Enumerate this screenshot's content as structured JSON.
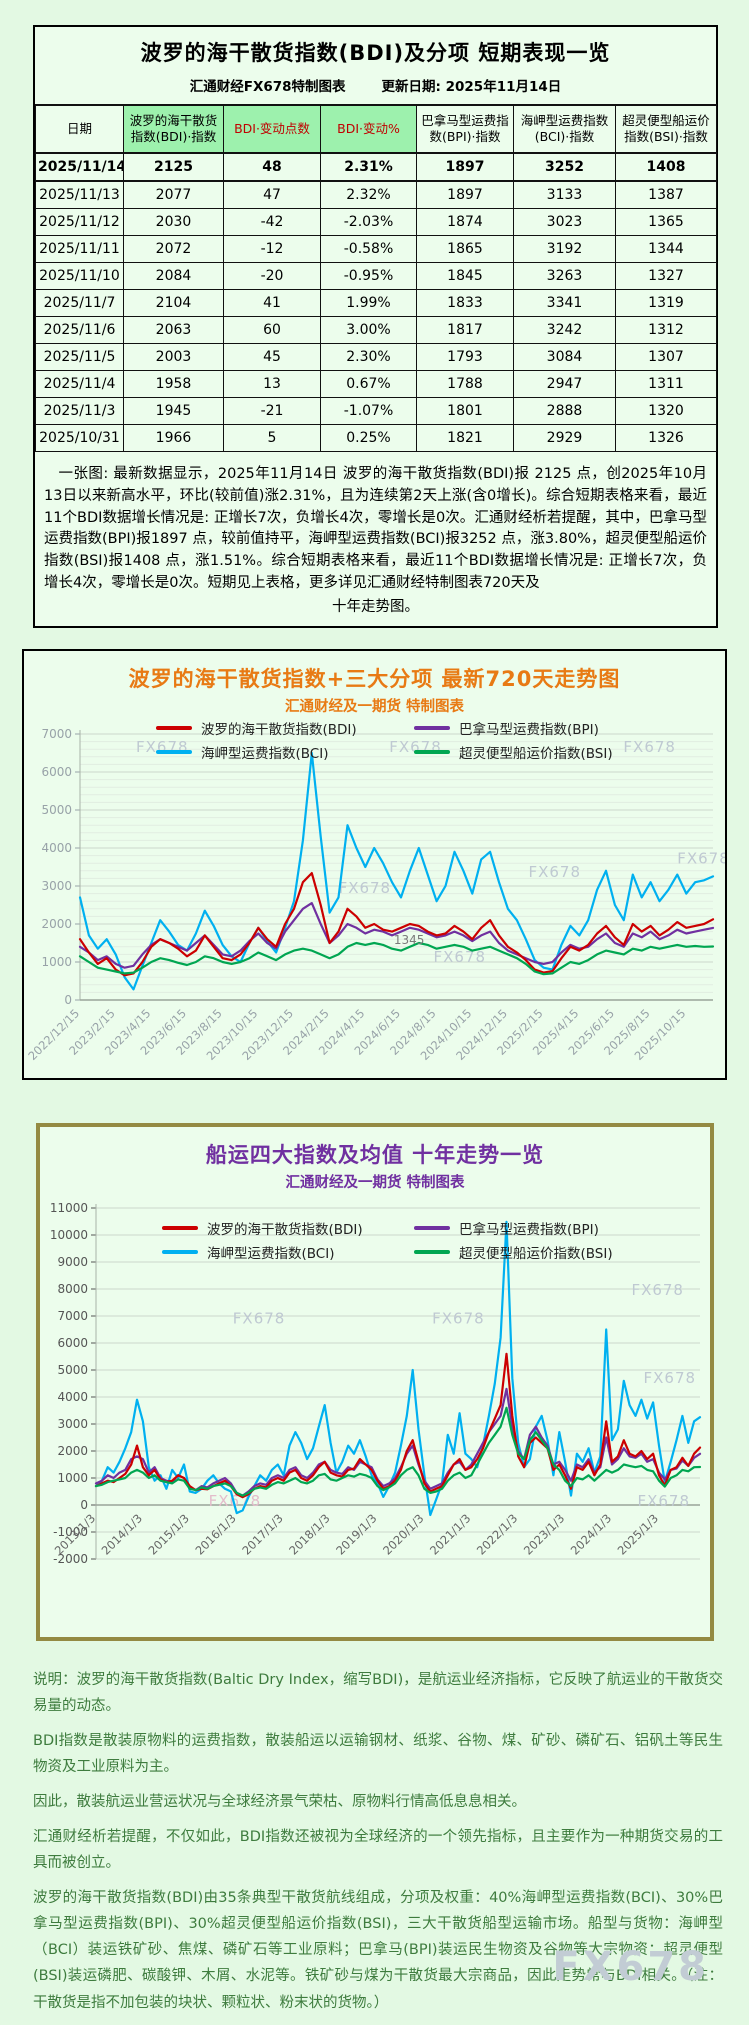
{
  "page": {
    "watermark": "FX678"
  },
  "table_panel": {
    "title": "波罗的海干散货指数(BDI)及分项  短期表现一览",
    "source": "汇通财经FX678特制图表",
    "updated": "更新日期: 2025年11月14日",
    "columns": [
      {
        "label": "日期",
        "style": "plain"
      },
      {
        "label": "波罗的海干散货指数(BDI)·指数",
        "style": "green"
      },
      {
        "label": "BDI·变动点数",
        "style": "green-red"
      },
      {
        "label": "BDI·变动%",
        "style": "green-red"
      },
      {
        "label": "巴拿马型运费指数(BPI)·指数",
        "style": "plain"
      },
      {
        "label": "海岬型运费指数(BCI)·指数",
        "style": "plain"
      },
      {
        "label": "超灵便型船运价指数(BSI)·指数",
        "style": "plain"
      }
    ],
    "rows": [
      [
        "2025/11/14",
        "2125",
        "48",
        "2.31%",
        "1897",
        "3252",
        "1408"
      ],
      [
        "2025/11/13",
        "2077",
        "47",
        "2.32%",
        "1897",
        "3133",
        "1387"
      ],
      [
        "2025/11/12",
        "2030",
        "-42",
        "-2.03%",
        "1874",
        "3023",
        "1365"
      ],
      [
        "2025/11/11",
        "2072",
        "-12",
        "-0.58%",
        "1865",
        "3192",
        "1344"
      ],
      [
        "2025/11/10",
        "2084",
        "-20",
        "-0.95%",
        "1845",
        "3263",
        "1327"
      ],
      [
        "2025/11/7",
        "2104",
        "41",
        "1.99%",
        "1833",
        "3341",
        "1319"
      ],
      [
        "2025/11/6",
        "2063",
        "60",
        "3.00%",
        "1817",
        "3242",
        "1312"
      ],
      [
        "2025/11/5",
        "2003",
        "45",
        "2.30%",
        "1793",
        "3084",
        "1307"
      ],
      [
        "2025/11/4",
        "1958",
        "13",
        "0.67%",
        "1788",
        "2947",
        "1311"
      ],
      [
        "2025/11/3",
        "1945",
        "-21",
        "-1.07%",
        "1801",
        "2888",
        "1320"
      ],
      [
        "2025/10/31",
        "1966",
        "5",
        "0.25%",
        "1821",
        "2929",
        "1326"
      ]
    ],
    "summary": "一张图: 最新数据显示，2025年11月14日 波罗的海干散货指数(BDI)报 2125 点，创2025年10月13日以来新高水平，环比(较前值)涨2.31%，且为连续第2天上涨(含0增长)。综合短期表格来看，最近11个BDI数据增长情况是: 正增长7次，负增长4次，零增长是0次。汇通财经析若提醒，其中，巴拿马型运费指数(BPI)报1897 点，较前值持平，海岬型运费指数(BCI)报3252 点，涨3.80%，超灵便型船运价指数(BSI)报1408 点，涨1.51%。综合短期表格来看，最近11个BDI数据增长情况是: 正增长7次，负增长4次，零增长是0次。短期见上表格，更多详见汇通财经特制图表720天及",
    "summary_tail": "十年走势图。"
  },
  "chart_data": [
    {
      "type": "line",
      "title": "波罗的海干散货指数+三大分项  最新720天走势图",
      "subtitle": "汇通财经及一期货  特制图表",
      "title_color": "#e87a14",
      "subtitle_color": "#e87a14",
      "ylim": [
        0,
        7000
      ],
      "ytick_step": 1000,
      "grid": true,
      "legend_position": "top-inside",
      "points_per_tick": 4,
      "x_tick_labels": [
        "2022/12/15",
        "2023/2/15",
        "2023/4/15",
        "2023/6/15",
        "2023/8/15",
        "2023/10/15",
        "2023/12/15",
        "2024/2/15",
        "2024/4/15",
        "2024/6/15",
        "2024/8/15",
        "2024/10/15",
        "2024/12/15",
        "2025/2/15",
        "2025/4/15",
        "2025/6/15",
        "2025/8/15",
        "2025/10/15"
      ],
      "series": [
        {
          "name": "波罗的海干散货指数(BDI)",
          "color": "#cc0000",
          "values": [
            1600,
            1250,
            950,
            1100,
            800,
            650,
            700,
            1000,
            1400,
            1600,
            1500,
            1350,
            1150,
            1300,
            1700,
            1400,
            1100,
            1050,
            1200,
            1500,
            1900,
            1600,
            1400,
            2000,
            2400,
            3100,
            3340,
            2500,
            1500,
            1800,
            2400,
            2200,
            1900,
            2000,
            1850,
            1800,
            1900,
            2000,
            1950,
            1800,
            1700,
            1750,
            1950,
            1800,
            1600,
            1900,
            2100,
            1700,
            1400,
            1250,
            1050,
            800,
            720,
            760,
            1100,
            1400,
            1300,
            1450,
            1750,
            1950,
            1650,
            1450,
            2000,
            1800,
            1950,
            1700,
            1850,
            2050,
            1900,
            1950,
            2000,
            2125
          ]
        },
        {
          "name": "巴拿马型运费指数(BPI)",
          "color": "#7030a0",
          "values": [
            1400,
            1250,
            1050,
            1150,
            950,
            850,
            900,
            1200,
            1450,
            1600,
            1500,
            1400,
            1300,
            1500,
            1700,
            1450,
            1200,
            1150,
            1300,
            1550,
            1750,
            1500,
            1350,
            1800,
            2100,
            2400,
            2550,
            2000,
            1500,
            1700,
            2000,
            1900,
            1750,
            1850,
            1800,
            1700,
            1800,
            1900,
            1850,
            1750,
            1650,
            1700,
            1800,
            1700,
            1550,
            1700,
            1800,
            1500,
            1300,
            1200,
            1100,
            1000,
            950,
            1000,
            1250,
            1450,
            1350,
            1400,
            1600,
            1750,
            1500,
            1400,
            1750,
            1650,
            1800,
            1600,
            1700,
            1850,
            1750,
            1800,
            1850,
            1897
          ]
        },
        {
          "name": "海岬型运费指数(BCI)",
          "color": "#00b0f0",
          "values": [
            2700,
            1700,
            1350,
            1600,
            1200,
            600,
            280,
            900,
            1500,
            2100,
            1800,
            1450,
            1300,
            1750,
            2350,
            1950,
            1450,
            1150,
            1000,
            1500,
            1900,
            1550,
            1250,
            1900,
            2600,
            4200,
            6500,
            4300,
            2300,
            2700,
            4600,
            4000,
            3500,
            4000,
            3600,
            3100,
            2700,
            3400,
            4000,
            3300,
            2600,
            3000,
            3900,
            3400,
            2800,
            3700,
            3900,
            3100,
            2400,
            2100,
            1600,
            1050,
            850,
            800,
            1450,
            1950,
            1700,
            2100,
            2900,
            3400,
            2500,
            2100,
            3300,
            2700,
            3100,
            2600,
            2900,
            3300,
            2800,
            3100,
            3150,
            3252
          ]
        },
        {
          "name": "超灵便型船运价指数(BSI)",
          "color": "#00a651",
          "values": [
            1150,
            1000,
            850,
            800,
            750,
            700,
            720,
            850,
            1000,
            1100,
            1050,
            980,
            920,
            1000,
            1150,
            1100,
            1000,
            950,
            1000,
            1100,
            1250,
            1150,
            1050,
            1200,
            1300,
            1350,
            1300,
            1200,
            1100,
            1200,
            1400,
            1500,
            1450,
            1500,
            1450,
            1350,
            1300,
            1400,
            1500,
            1450,
            1350,
            1400,
            1450,
            1400,
            1300,
            1350,
            1400,
            1300,
            1200,
            1100,
            950,
            750,
            680,
            700,
            850,
            1000,
            950,
            1050,
            1200,
            1300,
            1250,
            1200,
            1350,
            1300,
            1400,
            1350,
            1400,
            1450,
            1400,
            1420,
            1400,
            1408
          ]
        }
      ],
      "annotations": [
        {
          "text": "1345",
          "x_frac": 0.52,
          "y_value": 1480
        }
      ]
    },
    {
      "type": "line",
      "title": "船运四大指数及均值 十年走势一览",
      "subtitle": "汇通财经及一期货 特制图表",
      "title_color": "#7030a0",
      "subtitle_color": "#7030a0",
      "ylim": [
        -2000,
        11000
      ],
      "ytick_step": 1000,
      "grid": true,
      "legend_position": "top-inside",
      "points_per_tick": 8,
      "x_tick_labels": [
        "2013/1/3",
        "2014/1/3",
        "2015/1/3",
        "2016/1/3",
        "2017/1/3",
        "2018/1/3",
        "2019/1/3",
        "2020/1/3",
        "2021/1/3",
        "2022/1/3",
        "2023/1/3",
        "2024/1/3",
        "2025/1/3"
      ],
      "series": [
        {
          "name": "波罗的海干散货指数(BDI)",
          "color": "#cc0000",
          "values": [
            700,
            800,
            900,
            850,
            1000,
            1150,
            1500,
            2200,
            1400,
            1100,
            1300,
            950,
            850,
            900,
            1100,
            1000,
            700,
            550,
            600,
            580,
            700,
            800,
            900,
            700,
            400,
            290,
            400,
            600,
            700,
            650,
            900,
            1000,
            900,
            1200,
            1300,
            1000,
            900,
            1100,
            1400,
            1600,
            1200,
            1100,
            1050,
            1300,
            1350,
            1700,
            1500,
            1300,
            900,
            600,
            700,
            900,
            1300,
            2000,
            2400,
            1600,
            800,
            500,
            600,
            700,
            1100,
            1500,
            1700,
            1300,
            1400,
            1700,
            2100,
            2700,
            3200,
            3700,
            5600,
            3300,
            1800,
            1400,
            2300,
            2500,
            2300,
            2100,
            1300,
            1500,
            1100,
            600,
            1400,
            1300,
            1600,
            1100,
            1500,
            3100,
            1600,
            1800,
            2400,
            1900,
            1800,
            2000,
            1700,
            1900,
            1100,
            720,
            1300,
            1400,
            1750,
            1450,
            1900,
            2125
          ]
        },
        {
          "name": "巴拿马型运费指数(BPI)",
          "color": "#7030a0",
          "values": [
            800,
            900,
            1100,
            1000,
            1200,
            1300,
            1700,
            1800,
            1700,
            1200,
            1400,
            1000,
            900,
            850,
            1100,
            1000,
            650,
            550,
            700,
            650,
            800,
            900,
            1000,
            800,
            450,
            350,
            500,
            700,
            800,
            750,
            1000,
            1100,
            1000,
            1300,
            1400,
            1100,
            1000,
            1200,
            1500,
            1600,
            1300,
            1200,
            1150,
            1400,
            1300,
            1600,
            1500,
            1400,
            950,
            700,
            800,
            1000,
            1400,
            1900,
            2200,
            1500,
            900,
            600,
            700,
            800,
            1200,
            1500,
            1600,
            1300,
            1500,
            1900,
            2300,
            2700,
            3000,
            3300,
            4300,
            2900,
            2000,
            1700,
            2600,
            2900,
            2500,
            2200,
            1500,
            1600,
            1300,
            900,
            1500,
            1400,
            1700,
            1200,
            1400,
            2500,
            1500,
            1700,
            2100,
            1800,
            1750,
            1900,
            1600,
            1700,
            1200,
            950,
            1300,
            1350,
            1650,
            1450,
            1750,
            1897
          ]
        },
        {
          "name": "海岬型运费指数(BCI)",
          "color": "#00b0f0",
          "values": [
            700,
            900,
            1400,
            1200,
            1600,
            2100,
            2700,
            3900,
            3100,
            1400,
            900,
            1100,
            600,
            1300,
            1000,
            1500,
            500,
            450,
            600,
            900,
            1100,
            800,
            600,
            500,
            -300,
            -200,
            300,
            700,
            1100,
            900,
            1300,
            1500,
            1100,
            2200,
            2700,
            2300,
            1700,
            2100,
            2900,
            3700,
            2300,
            1200,
            1600,
            2200,
            1900,
            2400,
            1800,
            1100,
            800,
            300,
            700,
            1200,
            2200,
            3300,
            5000,
            2800,
            1100,
            -372,
            200,
            800,
            2600,
            1900,
            3400,
            1900,
            1700,
            1400,
            2200,
            3300,
            4500,
            6200,
            10485,
            4700,
            2300,
            1400,
            1700,
            2900,
            3300,
            2400,
            1100,
            2700,
            1600,
            350,
            1900,
            1600,
            2100,
            1200,
            1800,
            6500,
            2400,
            2800,
            4600,
            3700,
            3300,
            3900,
            3200,
            3800,
            2200,
            850,
            1600,
            2400,
            3300,
            2300,
            3100,
            3252
          ]
        },
        {
          "name": "超灵便型船运价指数(BSI)",
          "color": "#00a651",
          "values": [
            700,
            750,
            850,
            900,
            950,
            1000,
            1200,
            1300,
            1200,
            1000,
            1100,
            900,
            850,
            800,
            950,
            900,
            600,
            550,
            650,
            600,
            700,
            750,
            800,
            700,
            450,
            350,
            450,
            600,
            650,
            600,
            750,
            850,
            800,
            900,
            1000,
            850,
            800,
            900,
            1100,
            1150,
            950,
            900,
            1000,
            1100,
            1050,
            1150,
            1100,
            1000,
            700,
            550,
            650,
            800,
            1100,
            1300,
            1400,
            1100,
            600,
            450,
            500,
            600,
            900,
            1100,
            1200,
            1000,
            1100,
            1500,
            1900,
            2300,
            2600,
            2900,
            3600,
            2600,
            1900,
            1700,
            2400,
            2700,
            2400,
            2100,
            1500,
            1300,
            900,
            700,
            1000,
            950,
            1100,
            900,
            1100,
            1300,
            1200,
            1300,
            1500,
            1450,
            1400,
            1450,
            1300,
            1250,
            900,
            680,
            1000,
            1100,
            1300,
            1250,
            1400,
            1408
          ]
        }
      ],
      "annotations": []
    }
  ],
  "footer": {
    "paragraphs": [
      "说明：波罗的海干散货指数(Baltic Dry Index，缩写BDI)，是航运业经济指标，它反映了航运业的干散货交易量的动态。",
      "BDI指数是散装原物料的运费指数，散装船运以运输钢材、纸浆、谷物、煤、矿砂、磷矿石、铝矾土等民生物资及工业原料为主。",
      "因此，散装航运业营运状况与全球经济景气荣枯、原物料行情高低息息相关。",
      "汇通财经析若提醒，不仅如此，BDI指数还被视为全球经济的一个领先指标，且主要作为一种期货交易的工具而被创立。",
      "波罗的海干散货指数(BDI)由35条典型干散货航线组成，分项及权重：40%海岬型运费指数(BCI)、30%巴拿马型运费指数(BPI)、30%超灵便型船运价指数(BSI)，三大干散货船型运输市场。船型与货物：海岬型（BCI）装运铁矿砂、焦煤、磷矿石等工业原料；巴拿马(BPI)装运民生物资及谷物等大宗物资；超灵便型(BSI)装运磷肥、碳酸钾、木屑、水泥等。铁矿砂与煤为干散货最大宗商品，因此走势常与BDI相关。（注：干散货是指不加包装的块状、颗粒状、粉末状的货物。）"
    ]
  }
}
